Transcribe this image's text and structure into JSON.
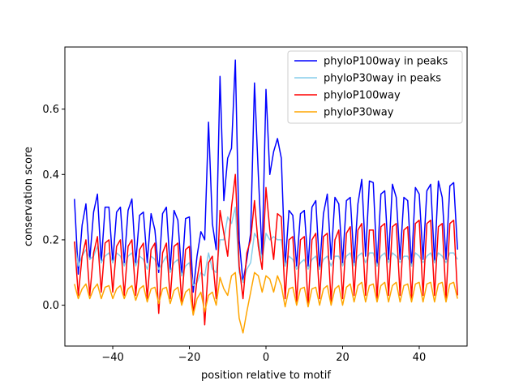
{
  "chart_data": {
    "type": "line",
    "xlabel": "position relative to motif",
    "ylabel": "conservation score",
    "xlim": [
      -52.5,
      52.5
    ],
    "ylim": [
      -0.125,
      0.79
    ],
    "xticks": [
      -40,
      -20,
      0,
      20,
      40
    ],
    "xtick_labels": [
      "−40",
      "−20",
      "0",
      "20",
      "40"
    ],
    "yticks": [
      0.0,
      0.2,
      0.4,
      0.6
    ],
    "ytick_labels": [
      "0.0",
      "0.2",
      "0.4",
      "0.6"
    ],
    "grid": false,
    "legend_position": "top-right",
    "x_start": -50,
    "series": [
      {
        "name": "phyloP100way in peaks",
        "color": "#0000ff",
        "values": [
          0.325,
          0.095,
          0.245,
          0.31,
          0.14,
          0.285,
          0.34,
          0.13,
          0.3,
          0.3,
          0.13,
          0.285,
          0.3,
          0.13,
          0.29,
          0.325,
          0.13,
          0.275,
          0.285,
          0.13,
          0.28,
          0.23,
          0.1,
          0.28,
          0.3,
          0.11,
          0.29,
          0.26,
          0.09,
          0.265,
          0.27,
          0.04,
          0.15,
          0.225,
          0.2,
          0.56,
          0.25,
          0.17,
          0.7,
          0.32,
          0.45,
          0.48,
          0.75,
          0.2,
          0.07,
          0.14,
          0.22,
          0.68,
          0.4,
          0.15,
          0.66,
          0.4,
          0.47,
          0.51,
          0.45,
          0.12,
          0.29,
          0.275,
          0.12,
          0.28,
          0.29,
          0.12,
          0.3,
          0.32,
          0.11,
          0.28,
          0.34,
          0.14,
          0.33,
          0.31,
          0.13,
          0.32,
          0.33,
          0.13,
          0.31,
          0.385,
          0.15,
          0.38,
          0.375,
          0.12,
          0.34,
          0.35,
          0.14,
          0.37,
          0.33,
          0.14,
          0.33,
          0.32,
          0.12,
          0.36,
          0.34,
          0.14,
          0.35,
          0.37,
          0.13,
          0.38,
          0.33,
          0.14,
          0.365,
          0.375,
          0.17
        ]
      },
      {
        "name": "phyloP30way in peaks",
        "color": "#87ceeb",
        "values": [
          0.195,
          0.12,
          0.15,
          0.17,
          0.14,
          0.15,
          0.18,
          0.13,
          0.15,
          0.16,
          0.13,
          0.16,
          0.15,
          0.12,
          0.15,
          0.16,
          0.12,
          0.15,
          0.14,
          0.11,
          0.15,
          0.14,
          0.11,
          0.13,
          0.15,
          0.1,
          0.13,
          0.14,
          0.09,
          0.12,
          0.13,
          0.06,
          0.07,
          0.1,
          0.09,
          0.16,
          0.11,
          0.1,
          0.2,
          0.2,
          0.27,
          0.25,
          0.3,
          0.1,
          0.07,
          0.11,
          0.13,
          0.22,
          0.2,
          0.14,
          0.22,
          0.2,
          0.21,
          0.2,
          0.2,
          0.12,
          0.15,
          0.14,
          0.11,
          0.13,
          0.14,
          0.11,
          0.14,
          0.15,
          0.11,
          0.14,
          0.15,
          0.12,
          0.15,
          0.15,
          0.12,
          0.15,
          0.16,
          0.12,
          0.15,
          0.16,
          0.13,
          0.16,
          0.16,
          0.12,
          0.15,
          0.16,
          0.13,
          0.16,
          0.15,
          0.13,
          0.15,
          0.15,
          0.12,
          0.16,
          0.15,
          0.13,
          0.15,
          0.16,
          0.13,
          0.16,
          0.15,
          0.13,
          0.16,
          0.16,
          0.14
        ]
      },
      {
        "name": "phyloP100way",
        "color": "#ff0000",
        "values": [
          0.195,
          0.03,
          0.15,
          0.2,
          0.03,
          0.16,
          0.21,
          0.04,
          0.19,
          0.2,
          0.04,
          0.18,
          0.2,
          0.03,
          0.18,
          0.2,
          0.03,
          0.17,
          0.19,
          0.02,
          0.17,
          0.19,
          -0.025,
          0.16,
          0.19,
          0.02,
          0.18,
          0.19,
          0.01,
          0.17,
          0.18,
          -0.03,
          0.08,
          0.15,
          -0.06,
          0.13,
          0.15,
          0.02,
          0.29,
          0.22,
          0.15,
          0.3,
          0.4,
          0.12,
          0.02,
          0.16,
          0.2,
          0.32,
          0.18,
          0.11,
          0.36,
          0.23,
          0.14,
          0.28,
          0.27,
          0.02,
          0.2,
          0.21,
          0.01,
          0.2,
          0.21,
          0.0,
          0.2,
          0.22,
          0.02,
          0.21,
          0.22,
          0.01,
          0.2,
          0.23,
          0.02,
          0.22,
          0.24,
          0.03,
          0.23,
          0.25,
          0.03,
          0.23,
          0.23,
          0.02,
          0.24,
          0.25,
          0.03,
          0.24,
          0.25,
          0.03,
          0.23,
          0.24,
          0.02,
          0.25,
          0.26,
          0.03,
          0.25,
          0.26,
          0.03,
          0.24,
          0.25,
          0.02,
          0.25,
          0.26,
          0.03
        ]
      },
      {
        "name": "phyloP30way",
        "color": "#ffa500",
        "values": [
          0.065,
          0.02,
          0.05,
          0.065,
          0.02,
          0.05,
          0.065,
          0.02,
          0.055,
          0.06,
          0.02,
          0.05,
          0.06,
          0.02,
          0.05,
          0.06,
          0.015,
          0.05,
          0.06,
          0.01,
          0.05,
          0.055,
          0.005,
          0.05,
          0.055,
          0.005,
          0.045,
          0.055,
          0.0,
          0.04,
          0.05,
          -0.03,
          0.02,
          0.04,
          -0.02,
          0.03,
          0.04,
          0.0,
          0.085,
          0.05,
          0.03,
          0.09,
          0.1,
          -0.04,
          -0.085,
          -0.02,
          0.04,
          0.1,
          0.09,
          0.04,
          0.09,
          0.08,
          0.04,
          0.09,
          0.06,
          -0.005,
          0.05,
          0.055,
          0.0,
          0.05,
          0.055,
          -0.005,
          0.05,
          0.055,
          0.0,
          0.05,
          0.06,
          0.0,
          0.05,
          0.06,
          0.0,
          0.055,
          0.065,
          0.01,
          0.06,
          0.07,
          0.01,
          0.06,
          0.065,
          0.01,
          0.06,
          0.07,
          0.01,
          0.06,
          0.07,
          0.01,
          0.06,
          0.065,
          0.01,
          0.065,
          0.07,
          0.01,
          0.065,
          0.07,
          0.01,
          0.065,
          0.07,
          0.01,
          0.065,
          0.07,
          0.02
        ]
      }
    ]
  }
}
